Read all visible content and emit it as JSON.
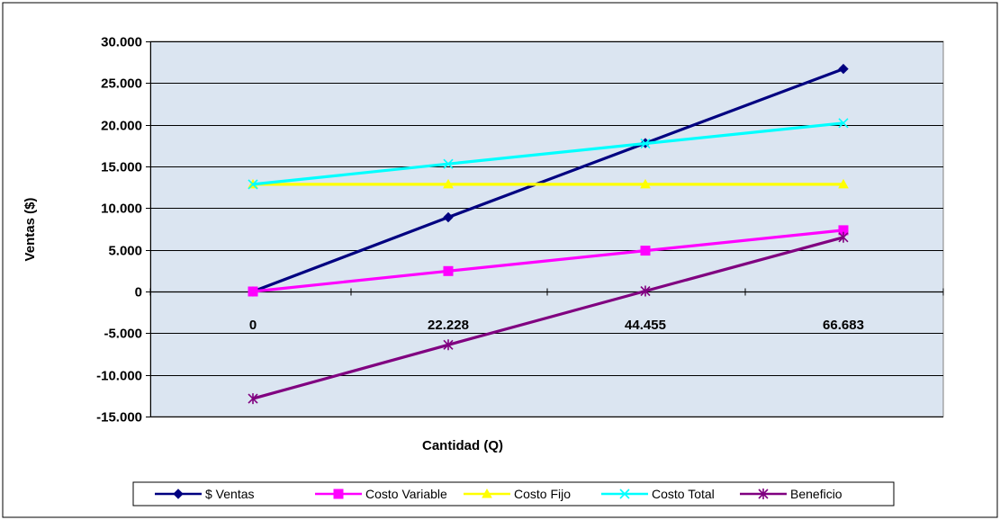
{
  "chart_data": {
    "type": "line",
    "title": "",
    "xlabel": "Cantidad (Q)",
    "ylabel": "Ventas ($)",
    "categories": [
      "0",
      "22.228",
      "44.455",
      "66.683"
    ],
    "ylim": [
      -15000,
      30000
    ],
    "yticks": [
      -15000,
      -10000,
      -5000,
      0,
      5000,
      10000,
      15000,
      20000,
      25000,
      30000
    ],
    "ytick_labels": [
      "-15.000",
      "-10.000",
      "-5.000",
      "0",
      "5.000",
      "10.000",
      "15.000",
      "20.000",
      "25.000",
      "30.000"
    ],
    "grid": true,
    "legend_position": "bottom",
    "plot_background": "#dbe5f1",
    "series": [
      {
        "name": "$ Ventas",
        "values": [
          0,
          8900,
          17800,
          26700
        ],
        "color": "#000080",
        "marker": "diamond"
      },
      {
        "name": "Costo Variable",
        "values": [
          0,
          2450,
          4900,
          7350
        ],
        "color": "#ff00ff",
        "marker": "square"
      },
      {
        "name": "Costo Fijo",
        "values": [
          12850,
          12850,
          12850,
          12850
        ],
        "color": "#ffff00",
        "marker": "triangle"
      },
      {
        "name": "Costo Total",
        "values": [
          12850,
          15300,
          17750,
          20200
        ],
        "color": "#00ffff",
        "marker": "x"
      },
      {
        "name": "Beneficio",
        "values": [
          -12850,
          -6400,
          50,
          6500
        ],
        "color": "#800080",
        "marker": "star"
      }
    ]
  }
}
